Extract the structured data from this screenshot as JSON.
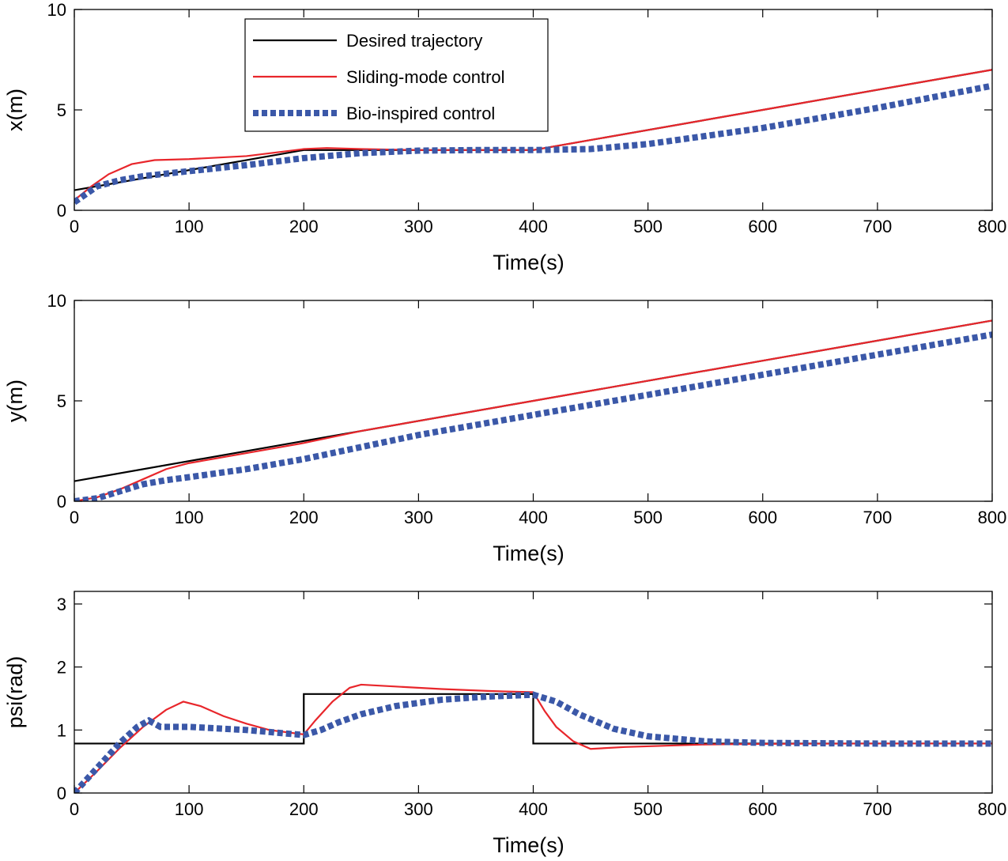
{
  "figure": {
    "title": ""
  },
  "chart_data": [
    {
      "type": "line",
      "id": "x",
      "xlabel": "Time(s)",
      "ylabel": "x(m)",
      "xlim": [
        0,
        800
      ],
      "ylim": [
        0,
        10
      ],
      "xticks": [
        0,
        100,
        200,
        300,
        400,
        500,
        600,
        700,
        800
      ],
      "yticks": [
        0,
        5,
        10
      ],
      "legend": {
        "placement": "top-left-inside",
        "entries": [
          "Desired trajectory",
          "Sliding-mode control",
          "Bio-inspired control"
        ]
      },
      "series": [
        {
          "name": "Desired trajectory",
          "color": "#000000",
          "style": "solid",
          "x": [
            0,
            200,
            400,
            800
          ],
          "y": [
            1,
            3,
            3,
            7
          ]
        },
        {
          "name": "Sliding-mode control",
          "color": "#e8262b",
          "style": "solid",
          "x": [
            0,
            15,
            30,
            50,
            70,
            100,
            150,
            200,
            220,
            250,
            300,
            400,
            420,
            450,
            500,
            600,
            700,
            800
          ],
          "y": [
            0.5,
            1.2,
            1.8,
            2.3,
            2.5,
            2.55,
            2.7,
            3.05,
            3.1,
            3.05,
            3.0,
            3.0,
            3.2,
            3.5,
            4.0,
            5.0,
            6.0,
            7.0
          ]
        },
        {
          "name": "Bio-inspired control",
          "color": "#3b58a8",
          "style": "dotted",
          "x": [
            0,
            20,
            40,
            60,
            100,
            150,
            200,
            250,
            300,
            350,
            400,
            450,
            500,
            600,
            700,
            800
          ],
          "y": [
            0.4,
            1.2,
            1.5,
            1.7,
            1.95,
            2.25,
            2.6,
            2.85,
            2.97,
            3.0,
            3.0,
            3.05,
            3.3,
            4.1,
            5.1,
            6.2
          ]
        }
      ]
    },
    {
      "type": "line",
      "id": "y",
      "xlabel": "Time(s)",
      "ylabel": "y(m)",
      "xlim": [
        0,
        800
      ],
      "ylim": [
        0,
        10
      ],
      "xticks": [
        0,
        100,
        200,
        300,
        400,
        500,
        600,
        700,
        800
      ],
      "yticks": [
        0,
        5,
        10
      ],
      "series": [
        {
          "name": "Desired trajectory",
          "color": "#000000",
          "style": "solid",
          "x": [
            0,
            800
          ],
          "y": [
            1,
            9
          ]
        },
        {
          "name": "Sliding-mode control",
          "color": "#e8262b",
          "style": "solid",
          "x": [
            0,
            20,
            40,
            60,
            80,
            100,
            150,
            200,
            250,
            300,
            400,
            500,
            600,
            700,
            800
          ],
          "y": [
            0,
            0.2,
            0.6,
            1.1,
            1.6,
            1.9,
            2.4,
            2.9,
            3.5,
            4.0,
            5.0,
            6.0,
            7.0,
            8.0,
            9.0
          ]
        },
        {
          "name": "Bio-inspired control",
          "color": "#3b58a8",
          "style": "dotted",
          "x": [
            0,
            20,
            40,
            60,
            80,
            100,
            150,
            200,
            250,
            300,
            400,
            500,
            600,
            700,
            800
          ],
          "y": [
            0,
            0.15,
            0.5,
            0.85,
            1.05,
            1.2,
            1.6,
            2.1,
            2.7,
            3.3,
            4.3,
            5.3,
            6.3,
            7.3,
            8.3
          ]
        }
      ]
    },
    {
      "type": "line",
      "id": "psi",
      "xlabel": "Time(s)",
      "ylabel": "psi(rad)",
      "xlim": [
        0,
        800
      ],
      "ylim": [
        0,
        3.2
      ],
      "xticks": [
        0,
        100,
        200,
        300,
        400,
        500,
        600,
        700,
        800
      ],
      "yticks": [
        0,
        1,
        2,
        3
      ],
      "series": [
        {
          "name": "Desired trajectory",
          "color": "#000000",
          "style": "solid",
          "x": [
            0,
            200,
            200,
            400,
            400,
            800
          ],
          "y": [
            0.785,
            0.785,
            1.571,
            1.571,
            0.785,
            0.785
          ]
        },
        {
          "name": "Sliding-mode control",
          "color": "#e8262b",
          "style": "solid",
          "x": [
            0,
            20,
            40,
            60,
            80,
            95,
            110,
            130,
            150,
            170,
            200,
            210,
            225,
            240,
            250,
            280,
            320,
            360,
            400,
            410,
            420,
            435,
            450,
            480,
            550,
            600,
            700,
            800
          ],
          "y": [
            0,
            0.35,
            0.72,
            1.05,
            1.32,
            1.45,
            1.38,
            1.22,
            1.1,
            1.0,
            0.93,
            1.15,
            1.45,
            1.67,
            1.72,
            1.69,
            1.65,
            1.62,
            1.6,
            1.3,
            1.05,
            0.82,
            0.7,
            0.73,
            0.77,
            0.78,
            0.785,
            0.785
          ]
        },
        {
          "name": "Bio-inspired control",
          "color": "#3b58a8",
          "style": "dotted",
          "x": [
            0,
            20,
            40,
            55,
            65,
            75,
            100,
            150,
            200,
            215,
            230,
            250,
            280,
            320,
            360,
            400,
            420,
            440,
            470,
            500,
            550,
            600,
            700,
            800
          ],
          "y": [
            0,
            0.4,
            0.8,
            1.05,
            1.15,
            1.05,
            1.05,
            1.0,
            0.92,
            1.0,
            1.12,
            1.25,
            1.38,
            1.48,
            1.53,
            1.56,
            1.45,
            1.25,
            1.02,
            0.9,
            0.82,
            0.795,
            0.785,
            0.785
          ]
        }
      ]
    }
  ]
}
